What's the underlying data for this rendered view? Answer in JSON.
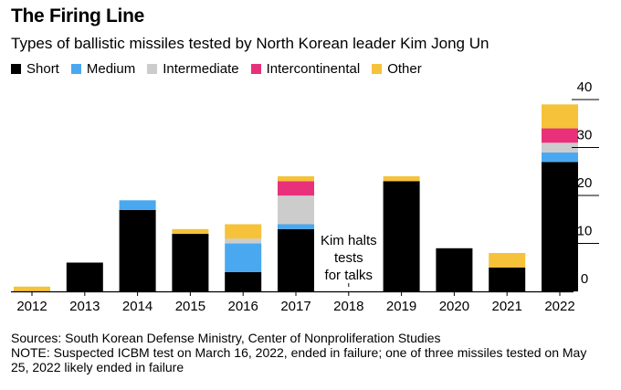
{
  "header": {
    "title": "The Firing Line",
    "subtitle": "Types of ballistic missiles tested by North Korean leader Kim Jong Un"
  },
  "legend": [
    {
      "name": "Short",
      "color": "#000000"
    },
    {
      "name": "Medium",
      "color": "#4aa8f0"
    },
    {
      "name": "Intermediate",
      "color": "#cccccc"
    },
    {
      "name": "Intercontinental",
      "color": "#e8317a"
    },
    {
      "name": "Other",
      "color": "#f5c23a"
    }
  ],
  "chart_data": {
    "type": "bar",
    "stacked": true,
    "categories": [
      "2012",
      "2013",
      "2014",
      "2015",
      "2016",
      "2017",
      "2018",
      "2019",
      "2020",
      "2021",
      "2022"
    ],
    "series": [
      {
        "name": "Short",
        "color": "#000000",
        "values": [
          0,
          6,
          17,
          12,
          4,
          13,
          0,
          23,
          9,
          5,
          27
        ]
      },
      {
        "name": "Medium",
        "color": "#4aa8f0",
        "values": [
          0,
          0,
          2,
          0,
          6,
          1,
          0,
          0,
          0,
          0,
          2
        ]
      },
      {
        "name": "Intermediate",
        "color": "#cccccc",
        "values": [
          0,
          0,
          0,
          0,
          1,
          6,
          0,
          0,
          0,
          0,
          2
        ]
      },
      {
        "name": "Intercontinental",
        "color": "#e8317a",
        "values": [
          0,
          0,
          0,
          0,
          0,
          3,
          0,
          0,
          0,
          0,
          3
        ]
      },
      {
        "name": "Other",
        "color": "#f5c23a",
        "values": [
          1,
          0,
          0,
          1,
          3,
          1,
          0,
          1,
          0,
          3,
          5
        ]
      }
    ],
    "yticks": [
      "0",
      "10",
      "20",
      "30",
      "40"
    ],
    "ylim": [
      0,
      40
    ],
    "y_axis_position": "right",
    "grid": false,
    "legend_position": "top-left",
    "annotation": {
      "category": "2018",
      "lines": [
        "Kim halts",
        "tests",
        "for talks"
      ]
    }
  },
  "notes": {
    "sources": "Sources: South Korean Defense Ministry, Center of Nonproliferation Studies",
    "note": "NOTE: Suspected ICBM test on March 16, 2022, ended in failure; one of three missiles tested on May 25, 2022 likely ended in failure"
  }
}
